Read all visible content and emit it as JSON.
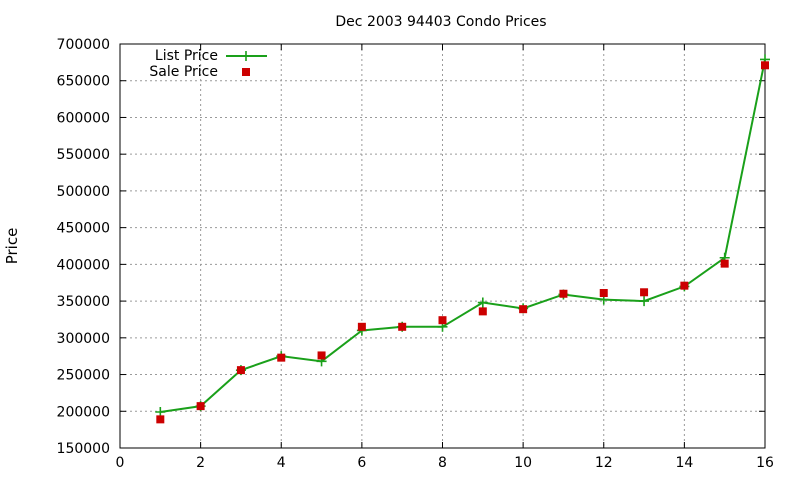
{
  "chart_data": {
    "type": "line",
    "title": "Dec 2003 94403 Condo Prices",
    "xlabel": "",
    "ylabel": "Price",
    "xlim": [
      0,
      16
    ],
    "ylim": [
      150000,
      700000
    ],
    "x_ticks": [
      0,
      2,
      4,
      6,
      8,
      10,
      12,
      14,
      16
    ],
    "y_ticks": [
      150000,
      200000,
      250000,
      300000,
      350000,
      400000,
      450000,
      500000,
      550000,
      600000,
      650000,
      700000
    ],
    "grid": true,
    "legend_position": "top-left",
    "series": [
      {
        "name": "List Price",
        "style": "line-with-plus-markers",
        "color": "#1aa01a",
        "x": [
          1,
          2,
          3,
          4,
          5,
          6,
          7,
          8,
          9,
          10,
          11,
          12,
          13,
          14,
          15,
          16
        ],
        "values": [
          199000,
          207000,
          256000,
          275000,
          268000,
          310000,
          315000,
          315000,
          348000,
          340000,
          359000,
          352000,
          350000,
          370000,
          409000,
          679000
        ]
      },
      {
        "name": "Sale Price",
        "style": "square-markers",
        "color": "#cc0000",
        "x": [
          1,
          2,
          3,
          4,
          5,
          6,
          7,
          8,
          9,
          10,
          11,
          12,
          13,
          14,
          15,
          16
        ],
        "values": [
          189000,
          207000,
          256000,
          273000,
          276000,
          315000,
          315000,
          324000,
          336000,
          339000,
          360000,
          361000,
          362000,
          371000,
          401000,
          671000
        ]
      }
    ]
  }
}
